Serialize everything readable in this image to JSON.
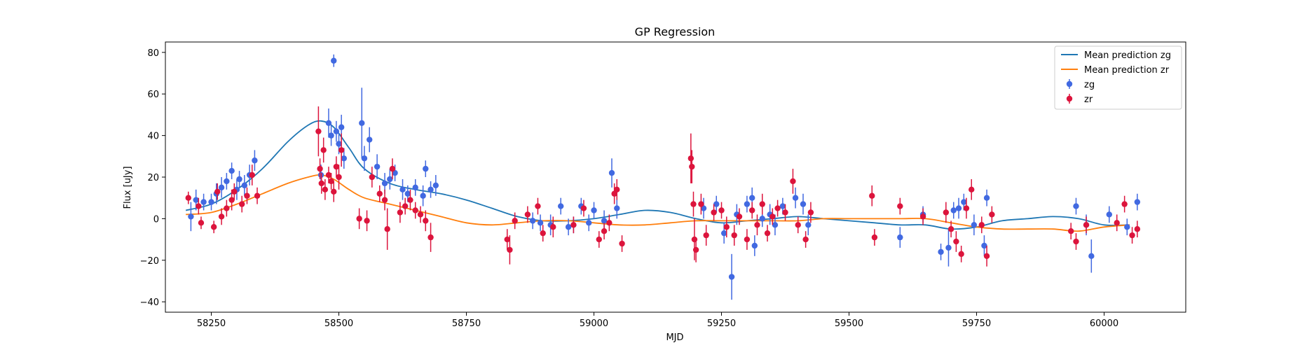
{
  "chart_data": {
    "type": "scatter",
    "title": "GP Regression",
    "xlabel": "MJD",
    "ylabel": "Flux [uJy]",
    "xlim": [
      58160,
      60160
    ],
    "ylim": [
      -45,
      85
    ],
    "xticks": [
      58250,
      58500,
      58750,
      59000,
      59250,
      59500,
      59750,
      60000
    ],
    "yticks": [
      -40,
      -20,
      0,
      20,
      40,
      60,
      80
    ],
    "grid": false,
    "legend_position": "top-right",
    "legend": [
      "Mean prediction zg",
      "Mean prediction zr",
      "zg",
      "zr"
    ],
    "colors": {
      "line_zg": "#1f77b4",
      "line_zr": "#ff7f0e",
      "points_zg": "#4169e1",
      "points_zr": "#dc143c"
    },
    "series": [
      {
        "name": "Mean prediction zg",
        "kind": "line",
        "x": [
          58200,
          58250,
          58300,
          58350,
          58400,
          58440,
          58465,
          58490,
          58520,
          58550,
          58600,
          58650,
          58700,
          58750,
          58800,
          58850,
          58900,
          58950,
          59000,
          59050,
          59100,
          59150,
          59200,
          59250,
          59300,
          59350,
          59400,
          59450,
          59500,
          59550,
          59600,
          59650,
          59700,
          59750,
          59800,
          59850,
          59900,
          59950,
          60000,
          60050
        ],
        "y": [
          4,
          7,
          14,
          24,
          37,
          45,
          47,
          44,
          34,
          24,
          17,
          14,
          12,
          9,
          5,
          1,
          -1,
          -1,
          0,
          2,
          4,
          3,
          0,
          -2,
          -1,
          0,
          1,
          0,
          -1,
          -2,
          -3,
          -3,
          -5,
          -4,
          -1,
          0,
          1,
          0,
          -3,
          -3
        ]
      },
      {
        "name": "Mean prediction zr",
        "kind": "line",
        "x": [
          58200,
          58250,
          58300,
          58350,
          58400,
          58440,
          58465,
          58490,
          58520,
          58550,
          58600,
          58650,
          58700,
          58750,
          58800,
          58850,
          58900,
          58950,
          59000,
          59050,
          59100,
          59150,
          59200,
          59250,
          59300,
          59350,
          59400,
          59450,
          59500,
          59550,
          59600,
          59650,
          59700,
          59750,
          59800,
          59850,
          59900,
          59950,
          60000,
          60050
        ],
        "y": [
          2,
          3,
          7,
          12,
          17,
          20,
          21,
          19,
          14,
          10,
          7,
          4,
          1,
          -2,
          -3,
          -2,
          -1,
          -1,
          -2,
          -3,
          -3,
          -2,
          -1,
          -1,
          -1,
          -1,
          -1,
          0,
          0,
          0,
          0,
          0,
          -2,
          -4,
          -5,
          -5,
          -5,
          -6,
          -4,
          -3
        ]
      },
      {
        "name": "zg",
        "kind": "errorbar",
        "points": [
          [
            58210,
            1,
            7
          ],
          [
            58220,
            9,
            5
          ],
          [
            58235,
            8,
            4
          ],
          [
            58250,
            8,
            4
          ],
          [
            58260,
            12,
            5
          ],
          [
            58270,
            15,
            5
          ],
          [
            58280,
            18,
            4
          ],
          [
            58290,
            23,
            4
          ],
          [
            58300,
            14,
            5
          ],
          [
            58305,
            19,
            4
          ],
          [
            58315,
            16,
            5
          ],
          [
            58325,
            21,
            5
          ],
          [
            58335,
            28,
            5
          ],
          [
            58465,
            21,
            5
          ],
          [
            58480,
            46,
            7
          ],
          [
            58485,
            40,
            5
          ],
          [
            58490,
            76,
            3
          ],
          [
            58495,
            42,
            5
          ],
          [
            58500,
            36,
            5
          ],
          [
            58505,
            44,
            6
          ],
          [
            58510,
            29,
            5
          ],
          [
            58545,
            46,
            17
          ],
          [
            58550,
            29,
            6
          ],
          [
            58560,
            38,
            6
          ],
          [
            58575,
            25,
            6
          ],
          [
            58590,
            17,
            5
          ],
          [
            58600,
            19,
            5
          ],
          [
            58610,
            22,
            4
          ],
          [
            58625,
            14,
            5
          ],
          [
            58635,
            12,
            4
          ],
          [
            58650,
            15,
            4
          ],
          [
            58665,
            11,
            5
          ],
          [
            58670,
            24,
            4
          ],
          [
            58680,
            14,
            4
          ],
          [
            58690,
            16,
            5
          ],
          [
            58880,
            -1,
            4
          ],
          [
            58895,
            -2,
            4
          ],
          [
            58915,
            -3,
            5
          ],
          [
            58935,
            6,
            4
          ],
          [
            58950,
            -4,
            4
          ],
          [
            58960,
            -3,
            4
          ],
          [
            58975,
            6,
            4
          ],
          [
            58990,
            -2,
            4
          ],
          [
            59000,
            4,
            4
          ],
          [
            59020,
            -1,
            5
          ],
          [
            59035,
            22,
            7
          ],
          [
            59045,
            5,
            5
          ],
          [
            59215,
            5,
            5
          ],
          [
            59240,
            7,
            4
          ],
          [
            59255,
            -7,
            5
          ],
          [
            59270,
            -28,
            11
          ],
          [
            59280,
            2,
            5
          ],
          [
            59300,
            7,
            4
          ],
          [
            59310,
            10,
            5
          ],
          [
            59315,
            -13,
            5
          ],
          [
            59330,
            0,
            4
          ],
          [
            59345,
            2,
            5
          ],
          [
            59355,
            -3,
            5
          ],
          [
            59370,
            6,
            4
          ],
          [
            59395,
            10,
            5
          ],
          [
            59410,
            7,
            5
          ],
          [
            59420,
            -3,
            5
          ],
          [
            59600,
            -9,
            5
          ],
          [
            59645,
            2,
            4
          ],
          [
            59680,
            -16,
            4
          ],
          [
            59695,
            -14,
            9
          ],
          [
            59705,
            4,
            4
          ],
          [
            59715,
            5,
            5
          ],
          [
            59725,
            8,
            4
          ],
          [
            59745,
            -3,
            5
          ],
          [
            59765,
            -13,
            5
          ],
          [
            59770,
            10,
            4
          ],
          [
            59945,
            6,
            4
          ],
          [
            59965,
            -3,
            5
          ],
          [
            59975,
            -18,
            8
          ],
          [
            60010,
            2,
            4
          ],
          [
            60045,
            -4,
            4
          ],
          [
            60065,
            8,
            4
          ]
        ]
      },
      {
        "name": "zr",
        "kind": "errorbar",
        "points": [
          [
            58205,
            10,
            3
          ],
          [
            58225,
            6,
            4
          ],
          [
            58230,
            -2,
            3
          ],
          [
            58255,
            -4,
            3
          ],
          [
            58262,
            13,
            4
          ],
          [
            58270,
            1,
            4
          ],
          [
            58280,
            5,
            4
          ],
          [
            58290,
            9,
            5
          ],
          [
            58295,
            13,
            4
          ],
          [
            58310,
            7,
            4
          ],
          [
            58320,
            11,
            4
          ],
          [
            58330,
            21,
            5
          ],
          [
            58340,
            11,
            4
          ],
          [
            58460,
            42,
            12
          ],
          [
            58463,
            24,
            5
          ],
          [
            58466,
            17,
            5
          ],
          [
            58470,
            33,
            6
          ],
          [
            58473,
            14,
            5
          ],
          [
            58480,
            21,
            4
          ],
          [
            58485,
            18,
            4
          ],
          [
            58490,
            13,
            5
          ],
          [
            58495,
            25,
            5
          ],
          [
            58500,
            20,
            6
          ],
          [
            58505,
            33,
            8
          ],
          [
            58540,
            0,
            5
          ],
          [
            58555,
            -1,
            5
          ],
          [
            58565,
            20,
            5
          ],
          [
            58580,
            12,
            4
          ],
          [
            58590,
            9,
            5
          ],
          [
            58595,
            -5,
            10
          ],
          [
            58605,
            24,
            5
          ],
          [
            58620,
            3,
            5
          ],
          [
            58630,
            6,
            4
          ],
          [
            58640,
            9,
            5
          ],
          [
            58650,
            4,
            4
          ],
          [
            58660,
            2,
            4
          ],
          [
            58670,
            -1,
            5
          ],
          [
            58680,
            -9,
            7
          ],
          [
            58830,
            -10,
            5
          ],
          [
            58835,
            -15,
            7
          ],
          [
            58845,
            -1,
            4
          ],
          [
            58870,
            2,
            4
          ],
          [
            58890,
            6,
            4
          ],
          [
            58900,
            -7,
            4
          ],
          [
            58920,
            -4,
            5
          ],
          [
            58960,
            -3,
            4
          ],
          [
            58980,
            5,
            4
          ],
          [
            59010,
            -10,
            4
          ],
          [
            59020,
            -6,
            4
          ],
          [
            59030,
            -2,
            4
          ],
          [
            59040,
            12,
            5
          ],
          [
            59045,
            14,
            5
          ],
          [
            59055,
            -12,
            4
          ],
          [
            59190,
            29,
            12
          ],
          [
            59192,
            25,
            8
          ],
          [
            59195,
            7,
            6
          ],
          [
            59197,
            -10,
            10
          ],
          [
            59200,
            -15,
            6
          ],
          [
            59210,
            7,
            5
          ],
          [
            59220,
            -8,
            5
          ],
          [
            59235,
            3,
            4
          ],
          [
            59250,
            4,
            4
          ],
          [
            59260,
            -4,
            5
          ],
          [
            59275,
            -8,
            5
          ],
          [
            59285,
            1,
            4
          ],
          [
            59300,
            -10,
            5
          ],
          [
            59310,
            4,
            4
          ],
          [
            59320,
            -3,
            5
          ],
          [
            59330,
            7,
            5
          ],
          [
            59340,
            -7,
            4
          ],
          [
            59350,
            1,
            4
          ],
          [
            59360,
            5,
            4
          ],
          [
            59375,
            3,
            4
          ],
          [
            59390,
            18,
            6
          ],
          [
            59400,
            -3,
            4
          ],
          [
            59415,
            -10,
            4
          ],
          [
            59425,
            3,
            5
          ],
          [
            59545,
            11,
            5
          ],
          [
            59550,
            -9,
            4
          ],
          [
            59600,
            6,
            4
          ],
          [
            59645,
            1,
            4
          ],
          [
            59690,
            3,
            5
          ],
          [
            59700,
            -5,
            4
          ],
          [
            59710,
            -11,
            5
          ],
          [
            59720,
            -17,
            4
          ],
          [
            59730,
            5,
            5
          ],
          [
            59740,
            14,
            5
          ],
          [
            59760,
            -3,
            4
          ],
          [
            59770,
            -18,
            5
          ],
          [
            59780,
            2,
            4
          ],
          [
            59935,
            -6,
            4
          ],
          [
            59945,
            -11,
            4
          ],
          [
            59965,
            -3,
            4
          ],
          [
            60025,
            -2,
            4
          ],
          [
            60040,
            7,
            4
          ],
          [
            60055,
            -8,
            4
          ],
          [
            60065,
            -5,
            4
          ]
        ]
      }
    ]
  }
}
